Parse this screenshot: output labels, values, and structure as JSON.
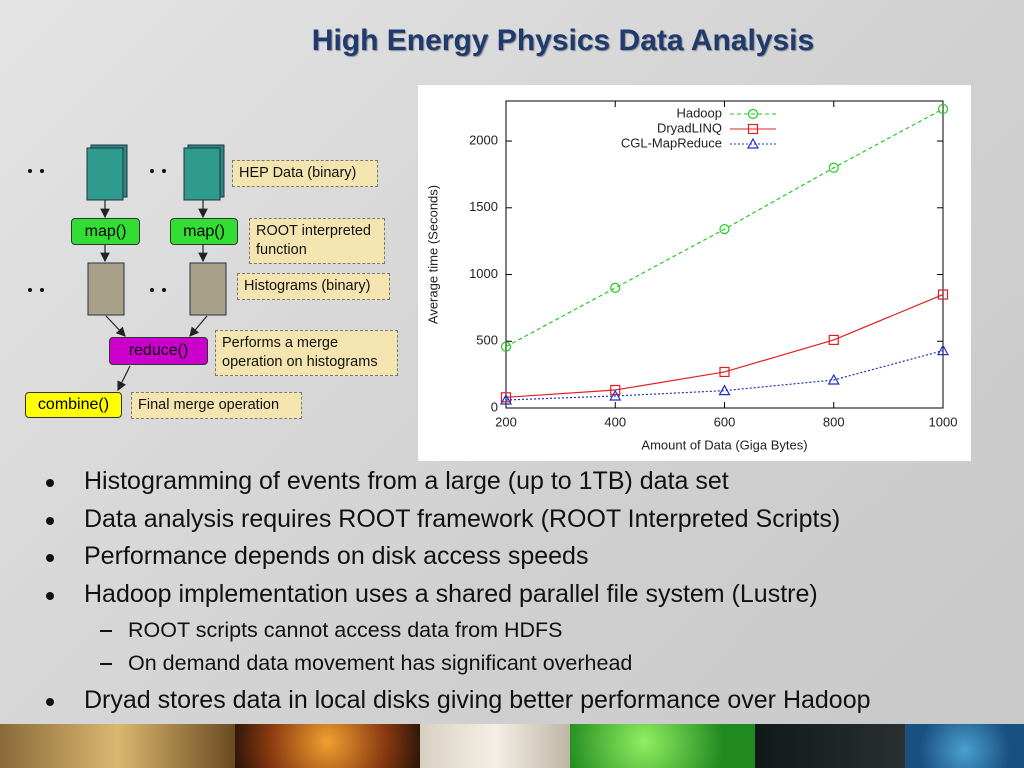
{
  "title": "High Energy Physics Data Analysis",
  "diagram": {
    "nodes": [
      {
        "label": "map()"
      },
      {
        "label": "map()"
      },
      {
        "label": "reduce()"
      },
      {
        "label": "combine()"
      }
    ],
    "notes": [
      {
        "label": "HEP Data (binary)"
      },
      {
        "label": "ROOT interpreted function"
      },
      {
        "label": "Histograms (binary)"
      },
      {
        "label": "Performs a merge operation on histograms"
      },
      {
        "label": "Final merge operation"
      }
    ]
  },
  "chart_data": {
    "type": "line",
    "x_label": "Amount of Data (Giga Bytes)",
    "y_label": "Average time (Seconds)",
    "x": [
      200,
      400,
      600,
      800,
      1000
    ],
    "xlim": [
      200,
      1000
    ],
    "xticks": [
      200,
      400,
      600,
      800,
      1000
    ],
    "ylim": [
      0,
      2300
    ],
    "yticks": [
      0,
      500,
      1000,
      1500,
      2000
    ],
    "legend": "top-left",
    "series": [
      {
        "name": "Hadoop",
        "color": "#22cc22",
        "marker": "circle",
        "dash": "4,3",
        "values": [
          460,
          900,
          1340,
          1800,
          2240
        ]
      },
      {
        "name": "DryadLINQ",
        "color": "#e02020",
        "marker": "square",
        "dash": "none",
        "values": [
          80,
          135,
          270,
          510,
          850
        ]
      },
      {
        "name": "CGL-MapReduce",
        "color": "#2030c0",
        "marker": "triangle",
        "dash": "2,2",
        "values": [
          60,
          90,
          130,
          210,
          430
        ]
      }
    ]
  },
  "bullets": [
    {
      "text": "Histogramming of events from a large (up to 1TB) data set",
      "level": 1
    },
    {
      "text": "Data analysis requires ROOT framework (ROOT Interpreted Scripts)",
      "level": 1
    },
    {
      "text": "Performance depends on disk access speeds",
      "level": 1
    },
    {
      "text": "Hadoop implementation uses a shared parallel file system (Lustre)",
      "level": 1
    },
    {
      "text": "ROOT scripts cannot access data from HDFS",
      "level": 2
    },
    {
      "text": "On demand data movement has significant overhead",
      "level": 2
    },
    {
      "text": "Dryad stores data in local disks giving better performance over Hadoop",
      "level": 1
    }
  ]
}
